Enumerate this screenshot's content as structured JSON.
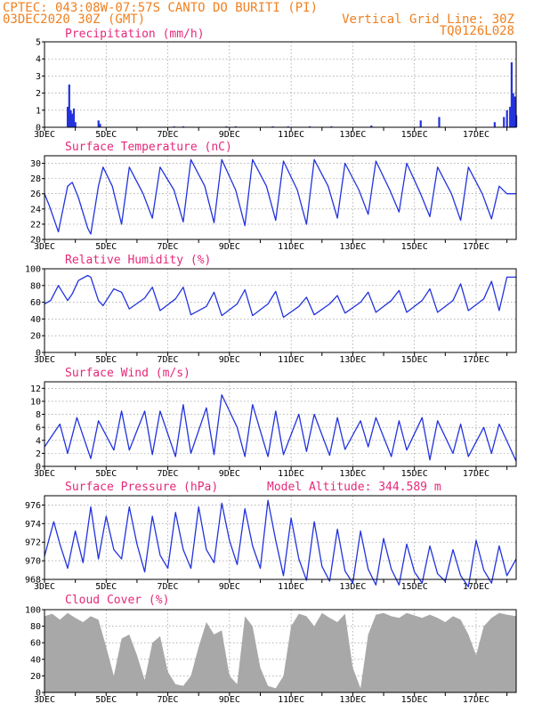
{
  "header": {
    "line1": "CPTEC:  043:08W-07:57S  CANTO DO BURITI (PI)",
    "line2": "03DEC2020 30Z (GMT)",
    "right1": "Vertical Grid Line: 30Z",
    "right2": "TQ0126L028"
  },
  "colors": {
    "line": "#2233dd",
    "bar": "#2233dd",
    "cloud": "#a8a8a8",
    "header": "#f08020",
    "title": "#e6287a"
  },
  "x_ticks": [
    "3DEC",
    "5DEC",
    "7DEC",
    "9DEC",
    "11DEC",
    "13DEC",
    "15DEC",
    "17DEC"
  ],
  "chart_data": [
    {
      "type": "bar",
      "title": "Precipitation (mm/h)",
      "x_unit": "day offset from 03DEC 00Z",
      "xlim": [
        0,
        15.3
      ],
      "ylim": [
        0,
        5
      ],
      "yticks": [
        "0",
        "1",
        "2",
        "3",
        "4",
        "5"
      ],
      "x": [
        0.75,
        0.8,
        0.85,
        0.9,
        0.95,
        1.0,
        1.75,
        1.8,
        4.2,
        4.5,
        5.9,
        6.2,
        7.4,
        7.9,
        8.6,
        9.3,
        10.6,
        12.2,
        12.8,
        14.6,
        14.9,
        15.0,
        15.1,
        15.15,
        15.2,
        15.25,
        15.3
      ],
      "values": [
        1.2,
        2.5,
        1.0,
        0.8,
        1.1,
        0.3,
        0.4,
        0.2,
        0.05,
        0.05,
        0.05,
        0.05,
        0.05,
        0.05,
        0.05,
        0.05,
        0.1,
        0.4,
        0.6,
        0.3,
        0.6,
        1.0,
        1.2,
        3.8,
        2.0,
        1.8,
        0.7
      ]
    },
    {
      "type": "line",
      "title": "Surface Temperature (nC)",
      "x_unit": "day offset from 03DEC 00Z",
      "xlim": [
        0,
        15.3
      ],
      "ylim": [
        20,
        31
      ],
      "yticks": [
        "20",
        "22",
        "24",
        "26",
        "28",
        "30"
      ],
      "x": [
        0,
        0.15,
        0.45,
        0.75,
        0.9,
        1.1,
        1.4,
        1.5,
        1.75,
        1.9,
        2.2,
        2.5,
        2.75,
        3.2,
        3.5,
        3.75,
        4.2,
        4.5,
        4.75,
        5.2,
        5.5,
        5.75,
        6.2,
        6.5,
        6.75,
        7.2,
        7.5,
        7.75,
        8.2,
        8.5,
        8.75,
        9.2,
        9.5,
        9.75,
        10.2,
        10.5,
        10.75,
        11.2,
        11.5,
        11.75,
        12.2,
        12.5,
        12.75,
        13.2,
        13.5,
        13.75,
        14.2,
        14.5,
        14.75,
        15.0,
        15.3
      ],
      "values": [
        26,
        24.5,
        21,
        27,
        27.5,
        25.5,
        21.5,
        20.7,
        27,
        29.5,
        27,
        22,
        29.5,
        26,
        22.8,
        29.5,
        26.5,
        22.3,
        30.5,
        27,
        22.2,
        30.5,
        26.5,
        21.8,
        30.5,
        27,
        22.5,
        30.3,
        26.5,
        22,
        30.5,
        27,
        22.8,
        30,
        26.5,
        23.3,
        30.3,
        26.5,
        23.6,
        30,
        26,
        23,
        29.5,
        26,
        22.5,
        29.5,
        26,
        22.7,
        27,
        26,
        26
      ]
    },
    {
      "type": "line",
      "title": "Relative Humidity (%)",
      "x_unit": "day offset from 03DEC 00Z",
      "xlim": [
        0,
        15.3
      ],
      "ylim": [
        0,
        100
      ],
      "yticks": [
        "0",
        "20",
        "40",
        "60",
        "80",
        "100"
      ],
      "x": [
        0,
        0.2,
        0.45,
        0.75,
        0.9,
        1.1,
        1.4,
        1.5,
        1.75,
        1.9,
        2.25,
        2.5,
        2.75,
        3.25,
        3.5,
        3.75,
        4.25,
        4.5,
        4.75,
        5.25,
        5.5,
        5.75,
        6.25,
        6.5,
        6.75,
        7.25,
        7.5,
        7.75,
        8.25,
        8.5,
        8.75,
        9.25,
        9.5,
        9.75,
        10.25,
        10.5,
        10.75,
        11.25,
        11.5,
        11.75,
        12.25,
        12.5,
        12.75,
        13.25,
        13.5,
        13.75,
        14.25,
        14.5,
        14.75,
        15.0,
        15.3
      ],
      "values": [
        58,
        62,
        80,
        62,
        70,
        86,
        92,
        90,
        62,
        56,
        76,
        72,
        52,
        65,
        78,
        50,
        64,
        78,
        45,
        55,
        72,
        44,
        58,
        75,
        44,
        58,
        73,
        42,
        55,
        66,
        45,
        58,
        68,
        47,
        60,
        72,
        48,
        62,
        74,
        48,
        62,
        76,
        48,
        62,
        82,
        50,
        64,
        85,
        50,
        90,
        90
      ]
    },
    {
      "type": "line",
      "title": "Surface Wind (m/s)",
      "x_unit": "day offset from 03DEC 00Z",
      "xlim": [
        0,
        15.3
      ],
      "ylim": [
        0,
        13
      ],
      "yticks": [
        "0",
        "2",
        "4",
        "6",
        "8",
        "10",
        "12"
      ],
      "x": [
        0,
        0.5,
        0.75,
        1.05,
        1.5,
        1.75,
        2.25,
        2.5,
        2.75,
        3.25,
        3.5,
        3.75,
        4.25,
        4.5,
        4.75,
        5.25,
        5.5,
        5.75,
        6.25,
        6.5,
        6.75,
        7.25,
        7.5,
        7.75,
        8.25,
        8.5,
        8.75,
        9.25,
        9.5,
        9.75,
        10.25,
        10.5,
        10.75,
        11.25,
        11.5,
        11.75,
        12.25,
        12.5,
        12.75,
        13.25,
        13.5,
        13.75,
        14.25,
        14.5,
        14.75,
        15.3
      ],
      "values": [
        3,
        6.5,
        2,
        7.5,
        1.2,
        7,
        2.5,
        8.5,
        2.5,
        8.5,
        1.8,
        8.5,
        1.5,
        9.5,
        2,
        9,
        1.8,
        11,
        6,
        1.5,
        9.5,
        1.5,
        8.5,
        1.8,
        8,
        2.3,
        8,
        1.7,
        7.5,
        2.6,
        7,
        3,
        7.5,
        1.5,
        7,
        2.5,
        7.5,
        1,
        7,
        2,
        6.5,
        1.5,
        6,
        2,
        6.5,
        0.8
      ]
    },
    {
      "type": "line",
      "title": "Surface Pressure (hPa)",
      "annotation": "Model Altitude: 344.589 m",
      "x_unit": "day offset from 03DEC 00Z",
      "xlim": [
        0,
        15.3
      ],
      "ylim": [
        968,
        977
      ],
      "yticks": [
        "968",
        "970",
        "972",
        "974",
        "976"
      ],
      "x": [
        0,
        0.3,
        0.5,
        0.75,
        1.0,
        1.25,
        1.5,
        1.75,
        2.0,
        2.25,
        2.5,
        2.75,
        3.0,
        3.25,
        3.5,
        3.75,
        4.0,
        4.25,
        4.5,
        4.75,
        5.0,
        5.25,
        5.5,
        5.75,
        6.0,
        6.25,
        6.5,
        6.75,
        7.0,
        7.25,
        7.5,
        7.75,
        8.0,
        8.25,
        8.5,
        8.75,
        9.0,
        9.25,
        9.5,
        9.75,
        10.0,
        10.25,
        10.5,
        10.75,
        11.0,
        11.25,
        11.5,
        11.75,
        12.0,
        12.25,
        12.5,
        12.75,
        13.0,
        13.25,
        13.5,
        13.75,
        14.0,
        14.25,
        14.5,
        14.75,
        15.0,
        15.3
      ],
      "values": [
        970.5,
        974.2,
        971.8,
        969.2,
        973.2,
        969.8,
        975.8,
        970.2,
        974.8,
        971.2,
        970.2,
        975.8,
        971.8,
        968.8,
        974.8,
        970.6,
        969.2,
        975.2,
        971.2,
        969.2,
        975.8,
        971.2,
        969.8,
        976.2,
        972.2,
        969.6,
        975.6,
        971.6,
        969.2,
        976.5,
        972.2,
        968.4,
        974.6,
        970.2,
        967.9,
        974.2,
        969.4,
        967.8,
        973.4,
        968.9,
        967.6,
        973.2,
        969.1,
        967.4,
        972.4,
        969.1,
        967.4,
        971.8,
        968.8,
        967.6,
        971.6,
        968.6,
        967.8,
        971.2,
        968.4,
        967.2,
        972.2,
        969.0,
        967.6,
        971.6,
        968.4,
        970.2
      ]
    },
    {
      "type": "area",
      "title": "Cloud Cover (%)",
      "x_unit": "day offset from 03DEC 00Z",
      "xlim": [
        0,
        15.3
      ],
      "ylim": [
        0,
        100
      ],
      "yticks": [
        "0",
        "20",
        "40",
        "60",
        "80",
        "100"
      ],
      "x": [
        0,
        0.25,
        0.5,
        0.75,
        1.0,
        1.25,
        1.5,
        1.75,
        2.0,
        2.25,
        2.5,
        2.75,
        3.0,
        3.25,
        3.5,
        3.75,
        4.0,
        4.25,
        4.5,
        4.75,
        5.0,
        5.25,
        5.5,
        5.75,
        6.0,
        6.25,
        6.5,
        6.75,
        7.0,
        7.25,
        7.5,
        7.75,
        8.0,
        8.25,
        8.5,
        8.75,
        9.0,
        9.25,
        9.5,
        9.75,
        10.0,
        10.25,
        10.5,
        10.75,
        11.0,
        11.25,
        11.5,
        11.75,
        12.0,
        12.25,
        12.5,
        12.75,
        13.0,
        13.25,
        13.5,
        13.75,
        14.0,
        14.25,
        14.5,
        14.75,
        15.0,
        15.3
      ],
      "values": [
        92,
        95,
        88,
        96,
        90,
        85,
        92,
        88,
        55,
        20,
        65,
        70,
        45,
        15,
        60,
        68,
        25,
        10,
        8,
        20,
        55,
        85,
        70,
        75,
        20,
        10,
        92,
        80,
        30,
        8,
        5,
        20,
        80,
        95,
        92,
        80,
        96,
        90,
        85,
        95,
        30,
        5,
        70,
        94,
        96,
        92,
        90,
        96,
        93,
        90,
        94,
        90,
        85,
        92,
        88,
        70,
        45,
        80,
        90,
        96,
        94,
        92
      ]
    }
  ]
}
